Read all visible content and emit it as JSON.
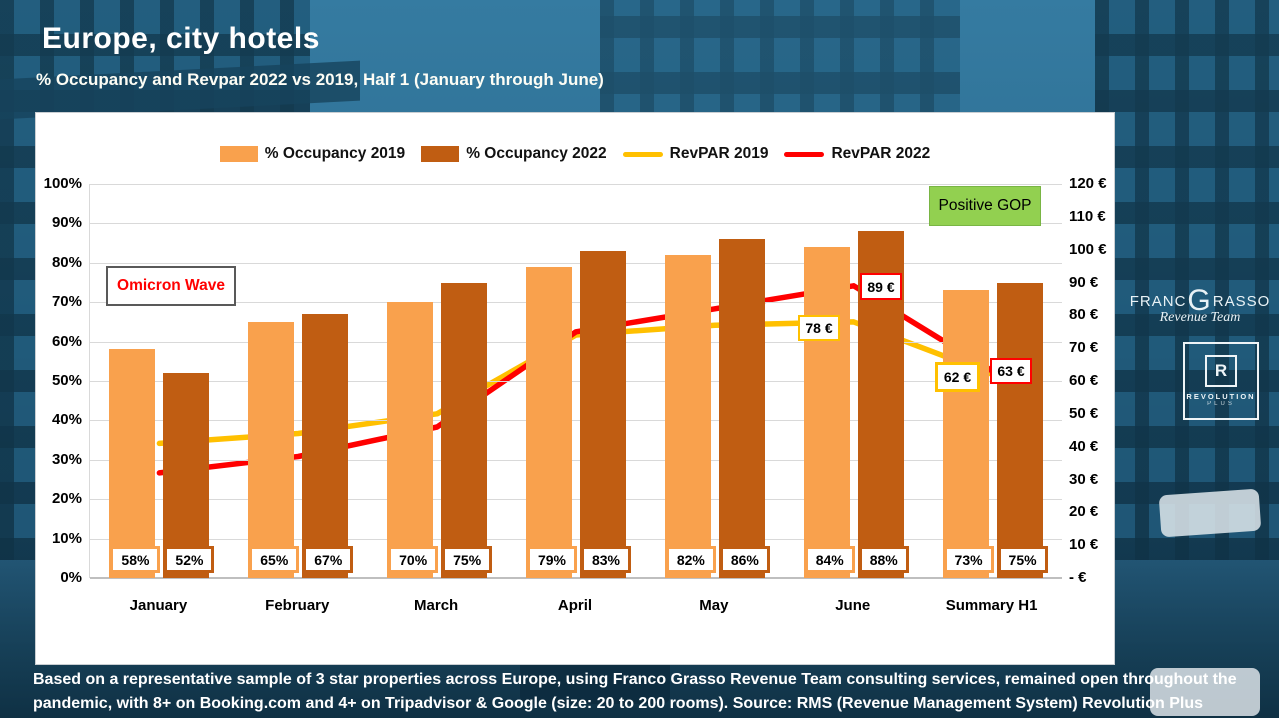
{
  "header": {
    "title": "Europe, city hotels",
    "subtitle": "% Occupancy and Revpar 2022 vs 2019, Half 1 (January through June)"
  },
  "legend": {
    "items": [
      {
        "label": "% Occupancy 2019",
        "swatch": "bar",
        "color": "#F9A14D"
      },
      {
        "label": "% Occupancy 2022",
        "swatch": "bar",
        "color": "#C05D12"
      },
      {
        "label": "RevPAR 2019",
        "swatch": "line",
        "color": "#FFC000"
      },
      {
        "label": "RevPAR 2022",
        "swatch": "line",
        "color": "#FF0000"
      }
    ]
  },
  "chart_data": {
    "type": "bar",
    "subtype": "combo-bar-line",
    "categories": [
      "January",
      "February",
      "March",
      "April",
      "May",
      "June",
      "Summary H1"
    ],
    "series": [
      {
        "name": "% Occupancy 2019",
        "type": "bar",
        "color": "#F9A14D",
        "unit": "%",
        "values": [
          58,
          65,
          70,
          79,
          82,
          84,
          73
        ],
        "labels": [
          "58%",
          "65%",
          "70%",
          "79%",
          "82%",
          "84%",
          "73%"
        ]
      },
      {
        "name": "% Occupancy 2022",
        "type": "bar",
        "color": "#C05D12",
        "unit": "%",
        "values": [
          52,
          67,
          75,
          83,
          86,
          88,
          75
        ],
        "labels": [
          "52%",
          "67%",
          "75%",
          "83%",
          "86%",
          "88%",
          "75%"
        ]
      },
      {
        "name": "RevPAR 2019",
        "type": "line",
        "color": "#FFC000",
        "unit": "€",
        "values": [
          41,
          44,
          50,
          74,
          77,
          78,
          62
        ],
        "point_labels": [
          null,
          null,
          null,
          null,
          null,
          "78 €",
          "62 €"
        ]
      },
      {
        "name": "RevPAR 2022",
        "type": "line",
        "color": "#FF0000",
        "unit": "€",
        "values": [
          32,
          37,
          46,
          75,
          82,
          89,
          63
        ],
        "point_labels": [
          null,
          null,
          null,
          null,
          null,
          "89 €",
          "63 €"
        ]
      }
    ],
    "left_axis": {
      "range": [
        0,
        100
      ],
      "unit": "%",
      "grid": true,
      "ticks": [
        "100%",
        "90%",
        "80%",
        "70%",
        "60%",
        "50%",
        "40%",
        "30%",
        "20%",
        "10%",
        "0%"
      ]
    },
    "right_axis": {
      "range": [
        0,
        120
      ],
      "unit": "€",
      "ticks": [
        "120 €",
        "110 €",
        "100 €",
        "90 €",
        "80 €",
        "70 €",
        "60 €",
        "50 €",
        "40 €",
        "30 €",
        "20 €",
        "10 €",
        "-  €"
      ]
    },
    "legend_position": "top-center",
    "annotations": [
      {
        "id": "omicron",
        "text": "Omicron Wave",
        "color": "#FF0000",
        "box": "white-dark-border"
      },
      {
        "id": "positive-gop",
        "text": "Positive GOP",
        "color": "#000000",
        "box": "#92D050"
      },
      {
        "id": "revpar2019-june",
        "text": "78 €",
        "border": "#FFC000"
      },
      {
        "id": "revpar2022-june",
        "text": "89 €",
        "border": "#FF0000"
      },
      {
        "id": "revpar2019-summary",
        "text": "62 €",
        "border": "#FFC000"
      },
      {
        "id": "revpar2022-summary",
        "text": "63 €",
        "border": "#FF0000"
      }
    ]
  },
  "footer": {
    "line1": "Based on a representative sample of 3 star properties across Europe, using Franco Grasso Revenue Team consulting services, remained open throughout the",
    "line2": "pandemic, with 8+ on Booking.com and 4+ on Tripadvisor & Google (size: 20 to 200 rooms). Source: RMS (Revenue Management System) Revolution Plus"
  },
  "logos": {
    "franco_grasso": {
      "part1": "FRANC",
      "big_letter": "G",
      "part2": "RASSO",
      "script": "Revenue Team"
    },
    "revolution": {
      "letter": "R",
      "name": "REVOLUTION",
      "sub": "PLUS"
    }
  }
}
